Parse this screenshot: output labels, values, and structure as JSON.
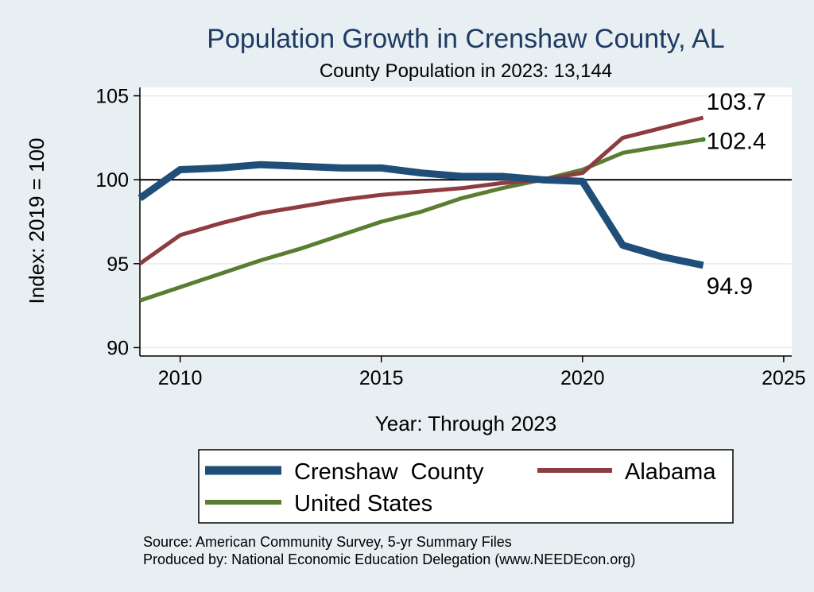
{
  "chart_data": {
    "type": "line",
    "title": "Population Growth in Crenshaw County, AL",
    "subtitle": "County Population in 2023: 13,144",
    "xlabel": "Year: Through 2023",
    "ylabel": "Index: 2019 = 100",
    "xlim": [
      2009,
      2025.2
    ],
    "ylim": [
      89.5,
      105.5
    ],
    "xticks": [
      2010,
      2015,
      2020,
      2025
    ],
    "yticks": [
      90,
      95,
      100,
      105
    ],
    "reference_line": 100,
    "x": [
      2009,
      2010,
      2011,
      2012,
      2013,
      2014,
      2015,
      2016,
      2017,
      2018,
      2019,
      2020,
      2021,
      2022,
      2023
    ],
    "series": [
      {
        "name": "Crenshaw  County",
        "color": "#1f4e79",
        "width": 9,
        "values": [
          98.9,
          100.6,
          100.7,
          100.9,
          100.8,
          100.7,
          100.7,
          100.4,
          100.2,
          100.2,
          100.0,
          99.9,
          96.1,
          95.4,
          94.9
        ],
        "end_label": "94.9"
      },
      {
        "name": "Alabama",
        "color": "#8e3b42",
        "width": 5,
        "values": [
          95.0,
          96.7,
          97.4,
          98.0,
          98.4,
          98.8,
          99.1,
          99.3,
          99.5,
          99.8,
          100.0,
          100.4,
          102.5,
          103.1,
          103.7
        ],
        "end_label": "103.7"
      },
      {
        "name": "United States",
        "color": "#5a7d32",
        "width": 5,
        "values": [
          92.8,
          93.6,
          94.4,
          95.2,
          95.9,
          96.7,
          97.5,
          98.1,
          98.9,
          99.5,
          100.0,
          100.6,
          101.6,
          102.0,
          102.4
        ],
        "end_label": "102.4"
      }
    ],
    "legend_position": "bottom"
  },
  "source": {
    "line1": "Source: American Community Survey, 5-yr Summary Files",
    "line2": "Produced by: National Economic Education Delegation (www.NEEDEcon.org)"
  }
}
